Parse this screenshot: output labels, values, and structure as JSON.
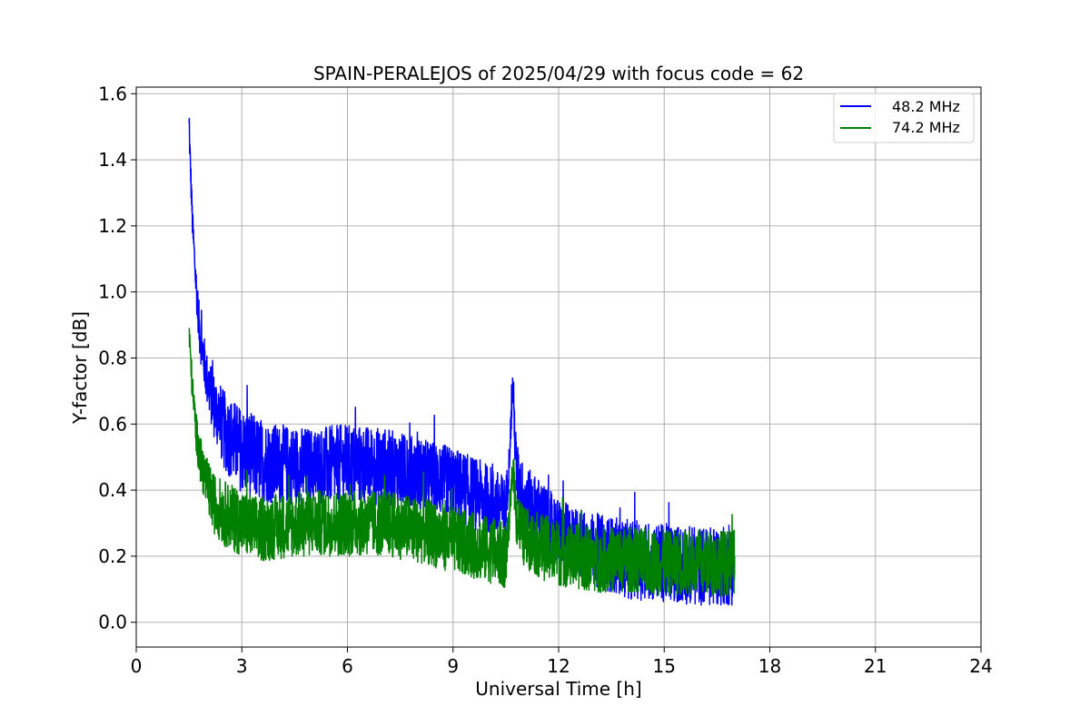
{
  "chart_data": {
    "type": "line",
    "title": "SPAIN-PERALEJOS of 2025/04/29 with focus code = 62",
    "xlabel": "Universal Time [h]",
    "ylabel": "Y-factor [dB]",
    "xlim": [
      0,
      24
    ],
    "ylim": [
      -0.075,
      1.62
    ],
    "xticks": [
      0,
      3,
      6,
      9,
      12,
      15,
      18,
      21,
      24
    ],
    "yticks": [
      0.0,
      0.2,
      0.4,
      0.6,
      0.8,
      1.0,
      1.2,
      1.4,
      1.6
    ],
    "xtick_labels": [
      "0",
      "3",
      "6",
      "9",
      "12",
      "15",
      "18",
      "21",
      "24"
    ],
    "ytick_labels": [
      "0.0",
      "0.2",
      "0.4",
      "0.6",
      "0.8",
      "1.0",
      "1.2",
      "1.4",
      "1.6"
    ],
    "grid": true,
    "legend_position": "top-right",
    "series": [
      {
        "name": "48.2 MHz",
        "color": "#0000ff",
        "x": [
          1.5,
          1.6,
          1.7,
          1.8,
          2.0,
          2.2,
          2.5,
          3.0,
          3.5,
          4.0,
          5.0,
          6.0,
          7.0,
          8.0,
          9.0,
          10.0,
          10.5,
          10.6,
          10.7,
          10.8,
          11.0,
          11.5,
          12.0,
          13.0,
          14.0,
          15.0,
          16.0,
          17.0
        ],
        "y": [
          1.5,
          1.2,
          1.02,
          0.88,
          0.74,
          0.66,
          0.58,
          0.52,
          0.49,
          0.48,
          0.47,
          0.48,
          0.47,
          0.45,
          0.42,
          0.37,
          0.34,
          0.5,
          0.72,
          0.45,
          0.38,
          0.33,
          0.27,
          0.22,
          0.19,
          0.18,
          0.17,
          0.17
        ],
        "spread": [
          0.04,
          0.05,
          0.06,
          0.07,
          0.08,
          0.1,
          0.12,
          0.13,
          0.13,
          0.12,
          0.12,
          0.12,
          0.12,
          0.11,
          0.11,
          0.11,
          0.1,
          0.04,
          0.06,
          0.1,
          0.1,
          0.1,
          0.1,
          0.11,
          0.12,
          0.12,
          0.12,
          0.12
        ]
      },
      {
        "name": "74.2 MHz",
        "color": "#008000",
        "x": [
          1.5,
          1.6,
          1.7,
          1.8,
          2.0,
          2.2,
          2.5,
          3.0,
          3.5,
          4.0,
          5.0,
          6.0,
          7.0,
          8.0,
          9.0,
          10.0,
          10.5,
          10.6,
          10.7,
          10.8,
          11.0,
          11.5,
          12.0,
          13.0,
          14.0,
          15.0,
          16.0,
          17.0
        ],
        "y": [
          0.88,
          0.7,
          0.58,
          0.5,
          0.42,
          0.36,
          0.33,
          0.3,
          0.28,
          0.29,
          0.3,
          0.3,
          0.3,
          0.28,
          0.25,
          0.22,
          0.2,
          0.3,
          0.48,
          0.32,
          0.26,
          0.23,
          0.21,
          0.19,
          0.19,
          0.18,
          0.18,
          0.18
        ],
        "spread": [
          0.04,
          0.05,
          0.06,
          0.07,
          0.08,
          0.09,
          0.1,
          0.1,
          0.1,
          0.1,
          0.1,
          0.1,
          0.1,
          0.1,
          0.1,
          0.1,
          0.1,
          0.04,
          0.05,
          0.09,
          0.09,
          0.1,
          0.1,
          0.1,
          0.1,
          0.1,
          0.1,
          0.1
        ]
      }
    ]
  }
}
